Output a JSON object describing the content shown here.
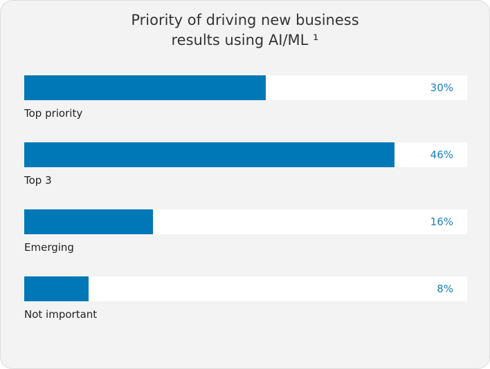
{
  "chart_data": {
    "type": "bar",
    "title_line1": "Priority of driving new business",
    "title_line2": "results using AI/ML ¹",
    "categories": [
      "Top priority",
      "Top 3",
      "Emerging",
      "Not important"
    ],
    "values": [
      30,
      46,
      16,
      8
    ],
    "value_labels": [
      "30%",
      "46%",
      "16%",
      "8%"
    ],
    "unit": "%",
    "xlim": [
      0,
      55
    ],
    "bar_color": "#0078b7",
    "track_color": "#ffffff",
    "label_color": "#1a7fc0"
  }
}
